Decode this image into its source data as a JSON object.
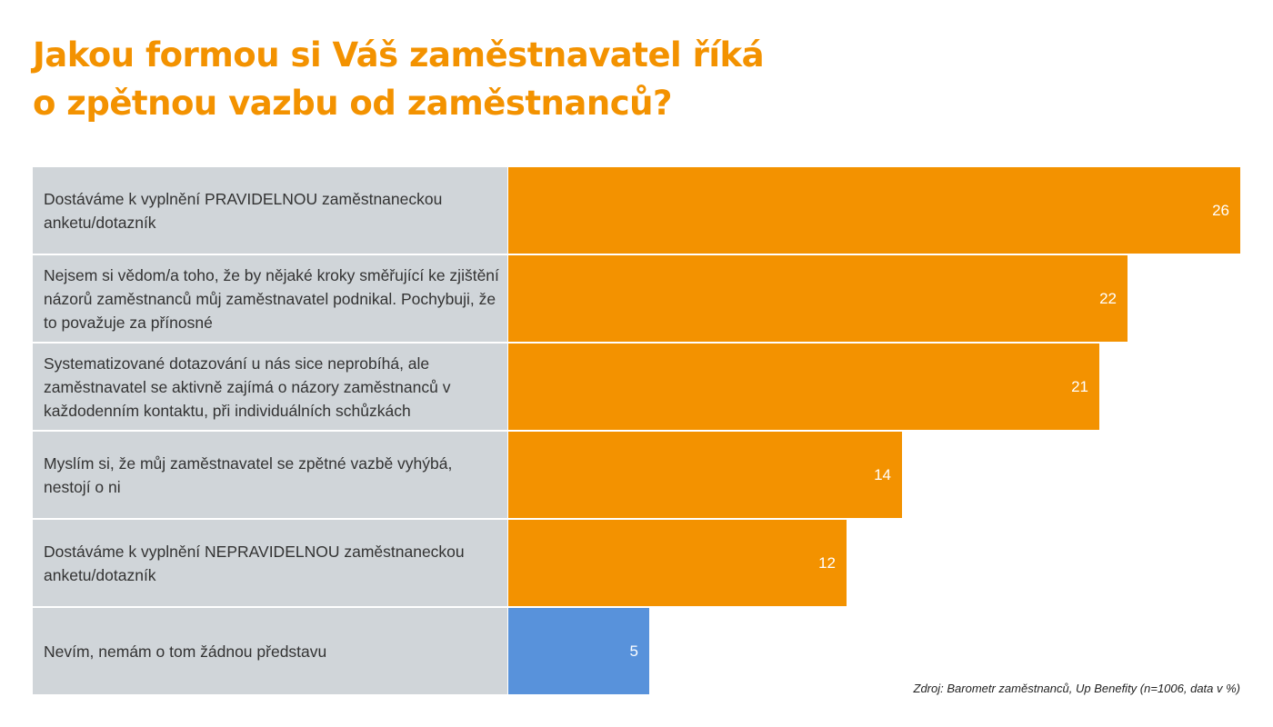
{
  "title": {
    "line1": "Jakou formou si Váš zaměstnavatel říká",
    "line2": "o zpětnou vazbu od zaměstnanců?"
  },
  "source": "Zdroj: Barometr zaměstnanců, Up Benefity (n=1006, data v %)",
  "colors": {
    "primary_bar": "#f39200",
    "highlight_bar": "#5892db",
    "label_bg": "#d0d5d9",
    "title": "#f39200"
  },
  "rows": [
    {
      "label": "Dostáváme k vyplnění PRAVIDELNOU zaměstnaneckou anketu/dotazník",
      "value": "26"
    },
    {
      "label": "Nejsem si vědom/a toho, že by nějaké kroky směřující ke zjištění názorů zaměstnanců můj zaměstnavatel podnikal. Pochybuji, že to považuje za přínosné",
      "value": "22"
    },
    {
      "label": "Systematizované dotazování u nás sice neprobíhá, ale zaměstnavatel se aktivně zajímá o názory zaměstnanců v každodenním kontaktu, při individuálních schůzkách",
      "value": "21"
    },
    {
      "label": "Myslím si, že můj zaměstnavatel se zpětné vazbě vyhýbá, nestojí o ni",
      "value": "14"
    },
    {
      "label": "Dostáváme k vyplnění NEPRAVIDELNOU zaměstnaneckou anketu/dotazník",
      "value": "12"
    },
    {
      "label": "Nevím, nemám o tom žádnou představu",
      "value": "5"
    }
  ],
  "chart_data": {
    "type": "bar",
    "orientation": "horizontal",
    "title": "Jakou formou si Váš zaměstnavatel říká o zpětnou vazbu od zaměstnanců?",
    "categories": [
      "Dostáváme k vyplnění PRAVIDELNOU zaměstnaneckou anketu/dotazník",
      "Nejsem si vědom/a toho, že by nějaké kroky směřující ke zjištění názorů zaměstnanců můj zaměstnavatel podnikal. Pochybuji, že to považuje za přínosné",
      "Systematizované dotazování u nás sice neprobíhá, ale zaměstnavatel se aktivně zajímá o názory zaměstnanců v každodenním kontaktu, při individuálních schůzkách",
      "Myslím si, že můj zaměstnavatel se zpětné vazbě vyhýbá, nestojí o ni",
      "Dostáváme k vyplnění NEPRAVIDELNOU zaměstnaneckou anketu/dotazník",
      "Nevím, nemám o tom žádnou představu"
    ],
    "values": [
      26,
      22,
      21,
      14,
      12,
      5
    ],
    "bar_colors": [
      "#f39200",
      "#f39200",
      "#f39200",
      "#f39200",
      "#f39200",
      "#5892db"
    ],
    "unit": "%",
    "xlabel": "",
    "ylabel": "",
    "xlim": [
      0,
      26
    ],
    "grid": false,
    "legend": "none",
    "data_labels": true,
    "annotation": "Zdroj: Barometr zaměstnanců, Up Benefity (n=1006, data v %)"
  }
}
